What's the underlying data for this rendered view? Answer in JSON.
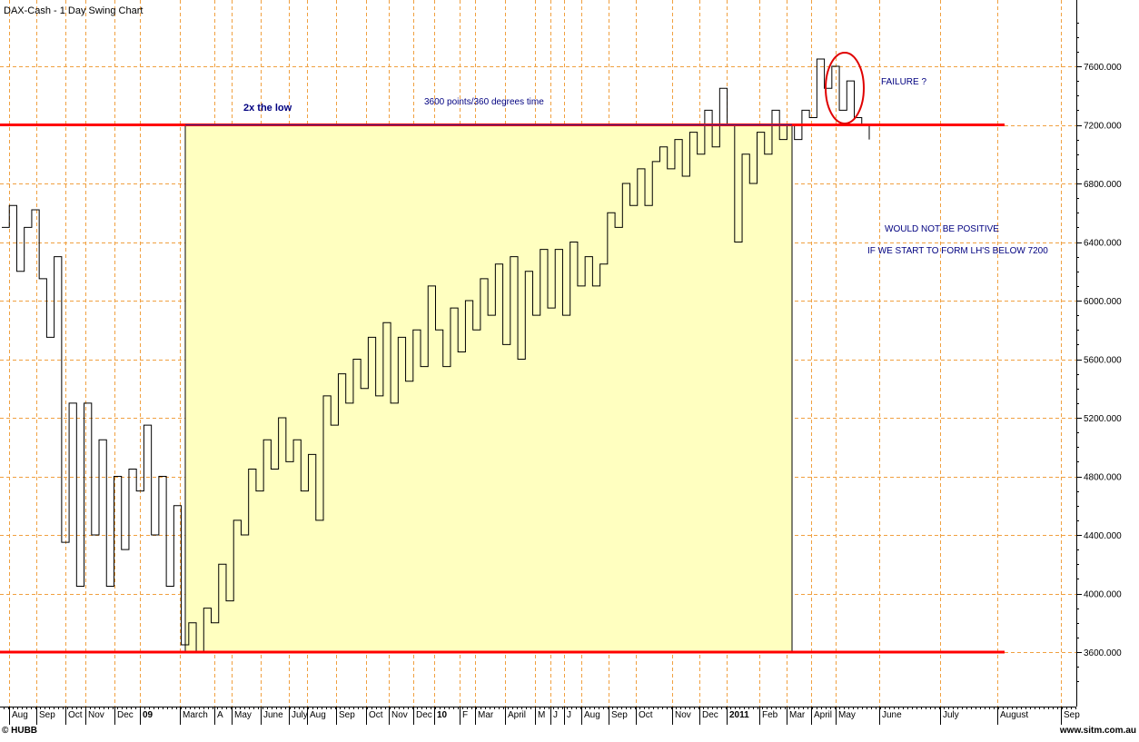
{
  "chart_data": {
    "type": "line",
    "title": "DAX-Cash - 1 Day Swing Chart",
    "ylim": [
      3300,
      8000
    ],
    "y_ticks": [
      3600,
      4000,
      4400,
      4800,
      5200,
      5600,
      6000,
      6400,
      6800,
      7200,
      7600
    ],
    "y_tick_labels": [
      "3600.000",
      "4000.000",
      "4400.000",
      "4800.000",
      "5200.000",
      "5600.000",
      "6000.000",
      "6400.000",
      "6800.000",
      "7200.000",
      "7600.000"
    ],
    "x_ticks": [
      "Aug",
      "Sep",
      "Oct",
      "Nov",
      "Dec",
      "09",
      "March",
      "A",
      "May",
      "June",
      "July",
      "Aug",
      "Sep",
      "Oct",
      "Nov",
      "Dec",
      "10",
      "F",
      "Mar",
      "April",
      "M",
      "J",
      "J",
      "Aug",
      "Sep",
      "Oct",
      "Nov",
      "Dec",
      "2011",
      "Feb",
      "Mar",
      "April",
      "May",
      "June",
      "July",
      "August",
      "Sep"
    ],
    "bold_ticks": [
      "09",
      "10",
      "2011"
    ],
    "grid": true,
    "swing_series": [
      6500,
      6650,
      6200,
      6500,
      6620,
      6150,
      5750,
      6300,
      4350,
      5300,
      4050,
      5300,
      4400,
      5050,
      4050,
      4800,
      4300,
      4850,
      4700,
      5150,
      4400,
      4800,
      4050,
      4600,
      3650,
      3800,
      3600,
      3900,
      3800,
      4200,
      3950,
      4500,
      4400,
      4850,
      4700,
      5050,
      4850,
      5200,
      4900,
      5050,
      4700,
      4950,
      4500,
      5350,
      5150,
      5500,
      5300,
      5600,
      5400,
      5750,
      5350,
      5850,
      5300,
      5750,
      5450,
      5800,
      5550,
      6100,
      5800,
      5550,
      5950,
      5650,
      6000,
      5800,
      6150,
      5900,
      6250,
      5700,
      6300,
      5600,
      6200,
      5900,
      6350,
      5950,
      6350,
      5900,
      6400,
      6100,
      6300,
      6100,
      6250,
      6600,
      6500,
      6800,
      6650,
      6900,
      6650,
      6950,
      7050,
      6900,
      7100,
      6850,
      7150,
      7000,
      7300,
      7050,
      7450,
      7200,
      6400,
      7000,
      6800,
      7150,
      7000,
      7300,
      7100,
      7200,
      7100,
      7300,
      7250,
      7650,
      7450,
      7600,
      7300,
      7500,
      7250,
      7200,
      7100
    ],
    "x_span_months": [
      "Jul",
      "Jun"
    ],
    "highlight_box": {
      "y_low": 3600,
      "y_high": 7200
    },
    "horizontal_levels": [
      7200,
      3600
    ],
    "box_line_value": 7200,
    "line_color": "#000000",
    "level_color": "#ff0000",
    "box_color": "#ffffc0",
    "annotations": {
      "two_x": "2x the low",
      "time": "3600 points/360 degrees time",
      "failure": "FAILURE ?",
      "not_positive": "WOULD NOT BE POSITIVE",
      "lh_below": "IF WE START TO FORM LH'S BELOW 7200"
    },
    "footer_left": "© HUBB",
    "footer_right": "www.sitm.com.au",
    "annotation_color": "#000080"
  }
}
